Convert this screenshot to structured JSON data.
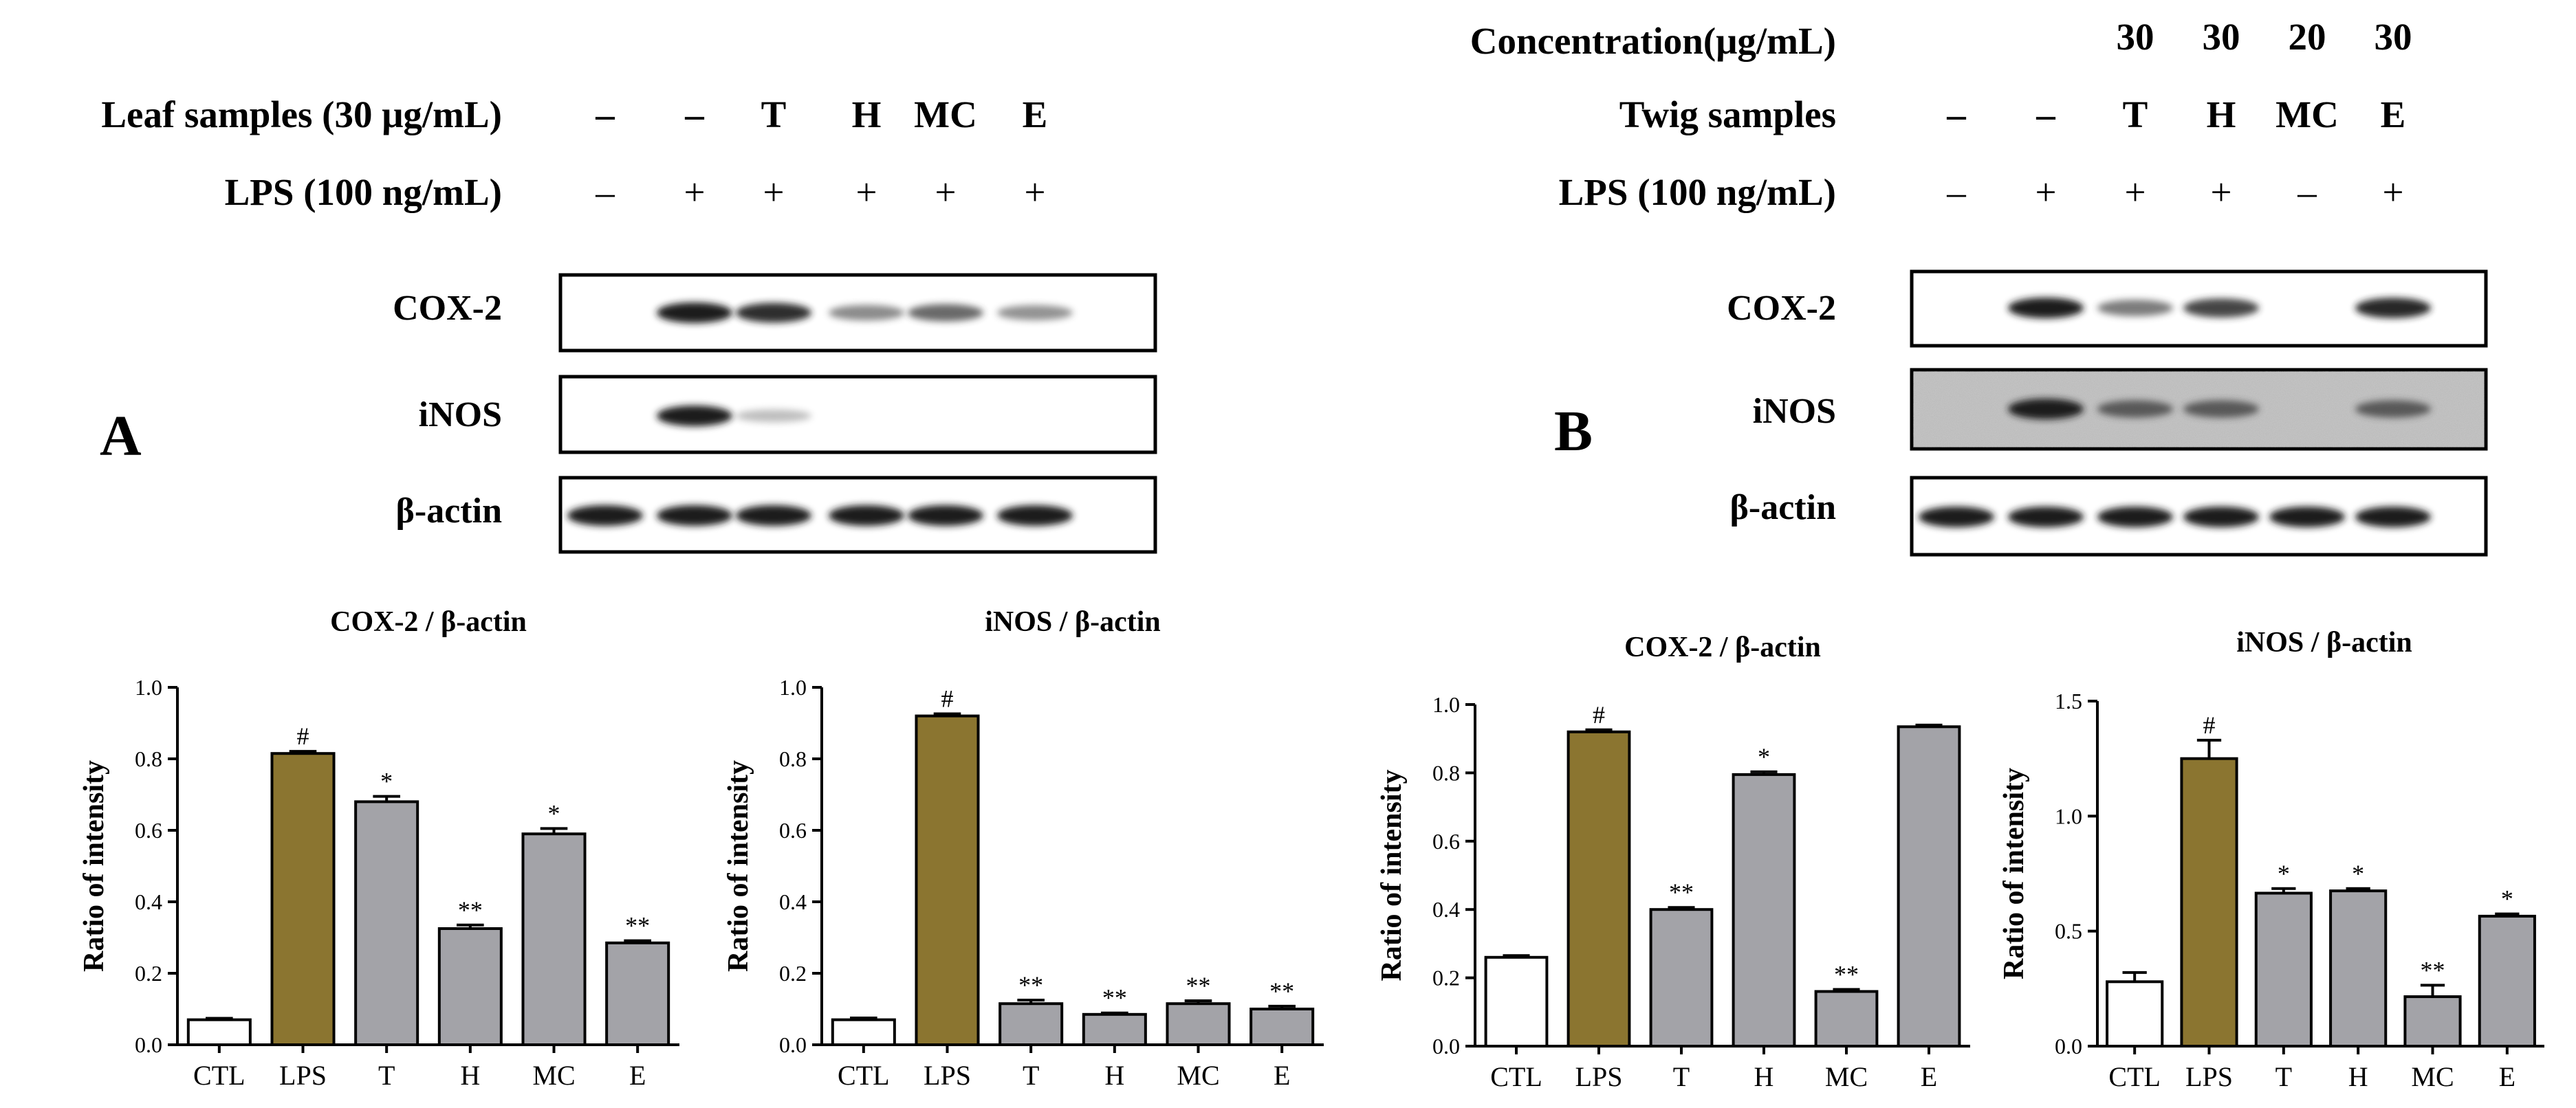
{
  "panels": [
    {
      "letter": "A",
      "concentration_label": "",
      "concentrations": [],
      "sample_label": "Leaf samples (30 μg/mL)",
      "samples": [
        "–",
        "–",
        "T",
        "H",
        "MC",
        "E"
      ],
      "lps_label": "LPS (100 ng/mL)",
      "lps": [
        "–",
        "+",
        "+",
        "+",
        "+",
        "+"
      ],
      "blots": [
        {
          "label": "COX-2",
          "intensities": [
            0,
            1.0,
            0.9,
            0.4,
            0.6,
            0.35
          ]
        },
        {
          "label": "iNOS",
          "intensities": [
            0,
            1.0,
            0.05,
            0,
            0,
            0
          ]
        },
        {
          "label": "β-actin",
          "intensities": [
            1,
            1,
            1,
            1,
            1,
            1
          ]
        }
      ]
    },
    {
      "letter": "B",
      "concentration_label": "Concentration(μg/mL)",
      "concentrations": [
        "",
        "",
        "30",
        "30",
        "20",
        "30"
      ],
      "sample_label": "Twig samples",
      "samples": [
        "–",
        "–",
        "T",
        "H",
        "MC",
        "E"
      ],
      "lps_label": "LPS (100 ng/mL)",
      "lps": [
        "–",
        "+",
        "+",
        "+",
        "–",
        "+"
      ],
      "blots": [
        {
          "label": "COX-2",
          "intensities": [
            0,
            1.0,
            0.5,
            0.8,
            0,
            0.95
          ]
        },
        {
          "label": "iNOS",
          "intensities": [
            0,
            1.0,
            0.6,
            0.6,
            0,
            0.6
          ]
        },
        {
          "label": "β-actin",
          "intensities": [
            1,
            1,
            1,
            1,
            1,
            1
          ]
        }
      ]
    }
  ],
  "colors": {
    "ctl": "#ffffff",
    "lps": "#8b7530",
    "sample": "#a3a3a8",
    "stroke": "#000000"
  },
  "chart_data": [
    {
      "type": "bar",
      "title": "COX-2 / β-actin",
      "ylabel": "Ratio of intensity",
      "xlabel": "",
      "categories": [
        "CTL",
        "LPS",
        "T",
        "H",
        "MC",
        "E"
      ],
      "values": [
        0.07,
        0.815,
        0.68,
        0.325,
        0.59,
        0.285
      ],
      "errors": [
        0.004,
        0.006,
        0.015,
        0.01,
        0.015,
        0.006
      ],
      "annotations": [
        "",
        "#",
        "*",
        "**",
        "*",
        "**"
      ],
      "ylim": [
        0,
        1.0
      ],
      "yticks": [
        "0.0",
        "0.2",
        "0.4",
        "0.6",
        "0.8",
        "1.0"
      ]
    },
    {
      "type": "bar",
      "title": "iNOS / β-actin",
      "ylabel": "Ratio of intensity",
      "xlabel": "",
      "categories": [
        "CTL",
        "LPS",
        "T",
        "H",
        "MC",
        "E"
      ],
      "values": [
        0.07,
        0.92,
        0.115,
        0.085,
        0.115,
        0.1
      ],
      "errors": [
        0.005,
        0.006,
        0.01,
        0.004,
        0.008,
        0.008
      ],
      "annotations": [
        "",
        "#",
        "**",
        "**",
        "**",
        "**"
      ],
      "ylim": [
        0,
        1.0
      ],
      "yticks": [
        "0.0",
        "0.2",
        "0.4",
        "0.6",
        "0.8",
        "1.0"
      ]
    },
    {
      "type": "bar",
      "title": "COX-2 / β-actin",
      "ylabel": "Ratio of intensity",
      "xlabel": "",
      "categories": [
        "CTL",
        "LPS",
        "T",
        "H",
        "MC",
        "E"
      ],
      "values": [
        0.26,
        0.92,
        0.4,
        0.795,
        0.16,
        0.935
      ],
      "errors": [
        0.005,
        0.006,
        0.006,
        0.008,
        0.006,
        0.005
      ],
      "annotations": [
        "",
        "#",
        "**",
        "*",
        "**",
        ""
      ],
      "ylim": [
        0,
        1.0
      ],
      "yticks": [
        "0.0",
        "0.2",
        "0.4",
        "0.6",
        "0.8",
        "1.0"
      ]
    },
    {
      "type": "bar",
      "title": "iNOS / β-actin",
      "ylabel": "Ratio of intensity",
      "xlabel": "",
      "categories": [
        "CTL",
        "LPS",
        "T",
        "H",
        "MC",
        "E"
      ],
      "values": [
        0.28,
        1.25,
        0.665,
        0.675,
        0.215,
        0.565
      ],
      "errors": [
        0.04,
        0.08,
        0.02,
        0.01,
        0.05,
        0.01
      ],
      "annotations": [
        "",
        "#",
        "*",
        "*",
        "**",
        "*"
      ],
      "ylim": [
        0,
        1.5
      ],
      "yticks": [
        "0.0",
        "0.5",
        "1.0",
        "1.5"
      ]
    }
  ]
}
